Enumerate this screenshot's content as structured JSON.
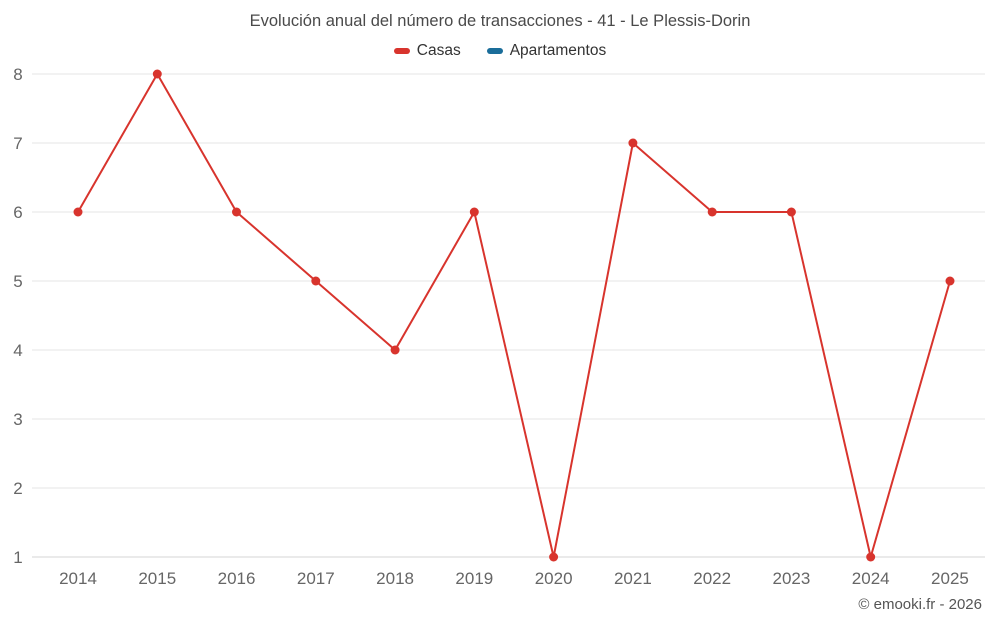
{
  "chart": {
    "title": "Evolución anual del número de transacciones - 41 - Le Plessis-Dorin",
    "footer": "© emooki.fr - 2026"
  },
  "chart_data": {
    "type": "line",
    "title": "Evolución anual del número de transacciones - 41 - Le Plessis-Dorin",
    "categories": [
      "2014",
      "2015",
      "2016",
      "2017",
      "2018",
      "2019",
      "2020",
      "2021",
      "2022",
      "2023",
      "2024",
      "2025"
    ],
    "series": [
      {
        "name": "Casas",
        "color": "#d8342d",
        "values": [
          6,
          8,
          6,
          5,
          4,
          6,
          1,
          7,
          6,
          6,
          1,
          5
        ]
      },
      {
        "name": "Apartamentos",
        "color": "#1a6d9a",
        "values": []
      }
    ],
    "xlabel": "",
    "ylabel": "",
    "ylim": [
      1,
      8
    ],
    "yticks": [
      1,
      2,
      3,
      4,
      5,
      6,
      7,
      8
    ],
    "grid": "horizontal",
    "legend_position": "top",
    "marker_radius": 4.5
  }
}
